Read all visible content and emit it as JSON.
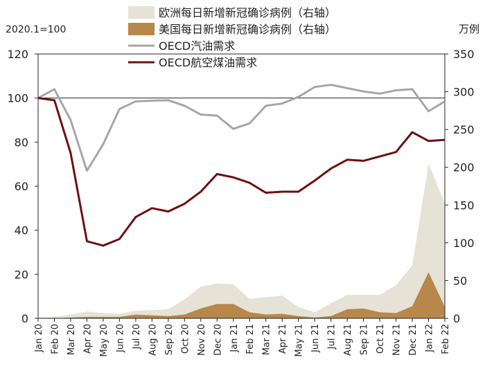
{
  "chart_data": {
    "type": "line",
    "left_unit_label": "2020.1=100",
    "right_unit_label": "万例",
    "left_axis": {
      "min": 0,
      "max": 120,
      "ticks": [
        0,
        20,
        40,
        60,
        80,
        100,
        120
      ]
    },
    "right_axis": {
      "min": 0,
      "max": 350,
      "ticks": [
        0,
        50,
        100,
        150,
        200,
        250,
        300,
        350
      ]
    },
    "reference_line": 100,
    "categories": [
      "Jan 20",
      "Feb 20",
      "Mar 20",
      "Apr 20",
      "May 20",
      "Jun 20",
      "Jul 20",
      "Aug 20",
      "Sep 20",
      "Oct 20",
      "Nov 20",
      "Dec 20",
      "Jan 21",
      "Feb 21",
      "Mar 21",
      "Apr 21",
      "May 21",
      "Jun 21",
      "Jul 21",
      "Aug 21",
      "Sep 21",
      "Oct 21",
      "Nov 21",
      "Dec 21",
      "Jan 22",
      "Feb 22"
    ],
    "series": [
      {
        "name": "欧洲每日新增新冠确诊病例（右轴）",
        "kind": "area",
        "axis": "right",
        "color": "#e6e2d6",
        "values": [
          1,
          2,
          5,
          9,
          7,
          6,
          10,
          11,
          12,
          25,
          42,
          46,
          45,
          26,
          28,
          30,
          15,
          8,
          20,
          31,
          31,
          31,
          44,
          70,
          205,
          152
        ]
      },
      {
        "name": "美国每日新增新冠确诊病例（右轴）",
        "kind": "area",
        "axis": "right",
        "color": "#b8874a",
        "values": [
          0,
          0,
          1,
          2,
          2,
          2,
          5,
          4,
          3,
          5,
          13,
          19,
          19,
          8,
          5,
          6,
          3,
          1,
          3,
          12,
          13,
          8,
          7,
          16,
          61,
          15
        ]
      },
      {
        "name": "OECD汽油需求",
        "kind": "line",
        "axis": "left",
        "color": "#a6a6a6",
        "values": [
          100,
          104,
          90,
          67,
          79,
          95,
          98.5,
          98.8,
          99,
          96.5,
          92.5,
          92,
          86,
          88.5,
          96.5,
          97.5,
          100.5,
          105,
          106,
          104.5,
          103,
          102,
          103.5,
          104,
          94,
          98.5
        ]
      },
      {
        "name": "OECD航空煤油需求",
        "kind": "line",
        "axis": "left",
        "color": "#6e0f0f",
        "values": [
          100,
          99,
          75,
          35,
          33,
          36,
          46,
          50,
          48.5,
          52,
          57.5,
          65.5,
          64,
          61.5,
          57,
          57.5,
          57.5,
          62.5,
          68,
          72,
          71.5,
          73.5,
          75.5,
          84.5,
          80.5,
          81
        ]
      }
    ],
    "legend_position": "top"
  }
}
